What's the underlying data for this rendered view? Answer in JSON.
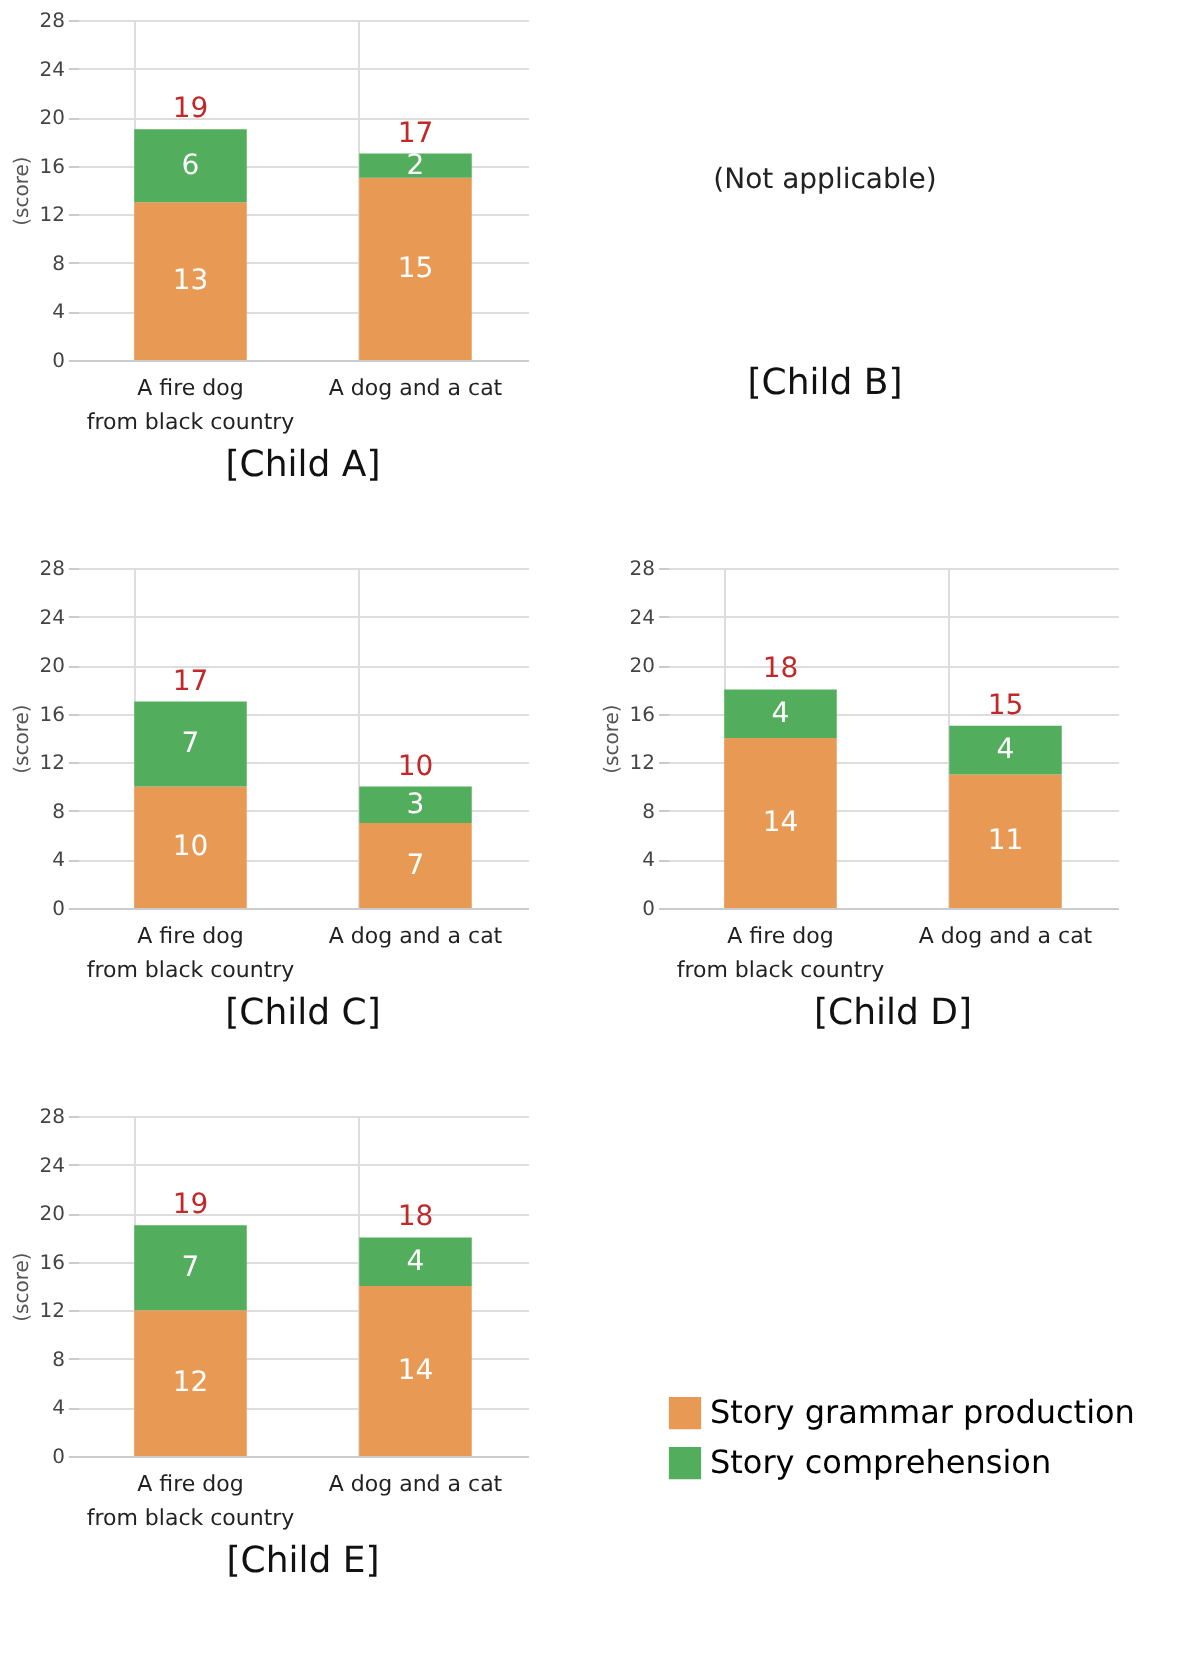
{
  "chart_data": [
    {
      "type": "bar",
      "title": "[Child A]",
      "ylabel": "(score)",
      "categories": [
        "A fire dog\nfrom black country",
        "A dog and a cat"
      ],
      "stacked": true,
      "data_labels": true,
      "totals": [
        "19",
        "17"
      ],
      "ylim": [
        0,
        28
      ],
      "yticks": [
        0,
        4,
        8,
        12,
        16,
        20,
        24,
        28
      ],
      "grid": true,
      "series": [
        {
          "color": "#e89954",
          "values": [
            13,
            15
          ]
        },
        {
          "color": "#52ad5c",
          "values": [
            6,
            2
          ]
        }
      ]
    },
    {
      "type": "other",
      "title": "[Child B]",
      "annotations": [
        "(Not applicable)"
      ]
    },
    {
      "type": "bar",
      "title": "[Child C]",
      "ylabel": "(score)",
      "categories": [
        "A fire dog\nfrom black country",
        "A dog and a cat"
      ],
      "stacked": true,
      "data_labels": true,
      "totals": [
        "17",
        "10"
      ],
      "ylim": [
        0,
        28
      ],
      "yticks": [
        0,
        4,
        8,
        12,
        16,
        20,
        24,
        28
      ],
      "grid": true,
      "series": [
        {
          "color": "#e89954",
          "values": [
            10,
            7
          ]
        },
        {
          "color": "#52ad5c",
          "values": [
            7,
            3
          ]
        }
      ]
    },
    {
      "type": "bar",
      "title": "[Child D]",
      "ylabel": "(score)",
      "categories": [
        "A fire dog\nfrom black country",
        "A dog and a cat"
      ],
      "stacked": true,
      "data_labels": true,
      "totals": [
        "18",
        "15"
      ],
      "ylim": [
        0,
        28
      ],
      "yticks": [
        0,
        4,
        8,
        12,
        16,
        20,
        24,
        28
      ],
      "grid": true,
      "series": [
        {
          "color": "#e89954",
          "values": [
            14,
            11
          ]
        },
        {
          "color": "#52ad5c",
          "values": [
            4,
            4
          ]
        }
      ]
    },
    {
      "type": "bar",
      "title": "[Child E]",
      "ylabel": "(score)",
      "categories": [
        "A fire dog\nfrom black country",
        "A dog and a cat"
      ],
      "stacked": true,
      "data_labels": true,
      "totals": [
        "19",
        "18"
      ],
      "ylim": [
        0,
        28
      ],
      "yticks": [
        0,
        4,
        8,
        12,
        16,
        20,
        24,
        28
      ],
      "grid": true,
      "legend": "bottom right",
      "series": [
        {
          "name": "Story grammar production",
          "color": "#e89954",
          "values": [
            12,
            14
          ]
        },
        {
          "name": "Story comprehension",
          "color": "#52ad5c",
          "values": [
            7,
            4
          ]
        }
      ]
    }
  ]
}
